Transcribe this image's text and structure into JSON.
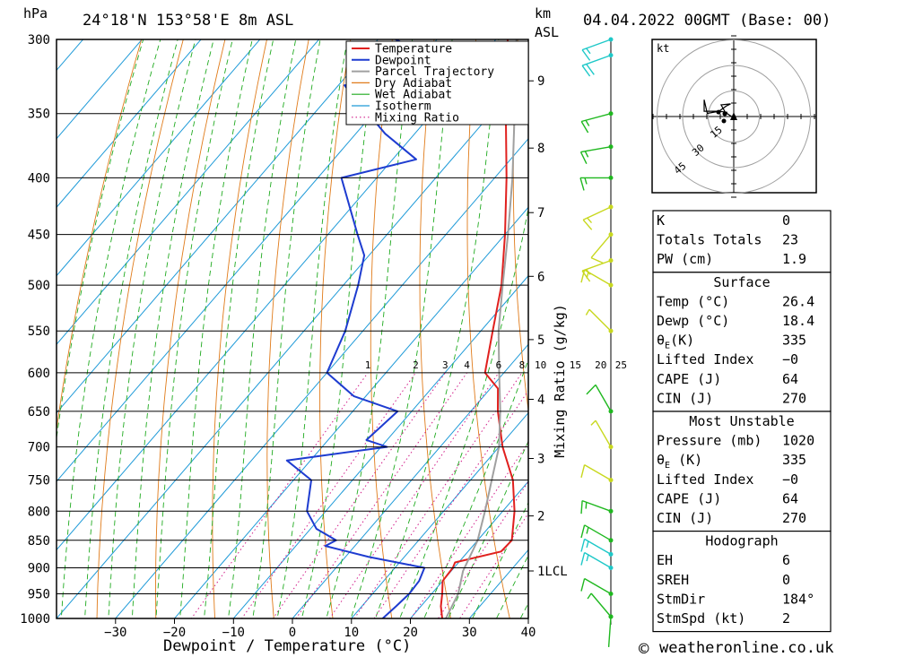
{
  "header": {
    "p_unit": "hPa",
    "location": "24°18'N 153°58'E 8m ASL",
    "km_unit": "km",
    "asl_label": "ASL",
    "date": "04.04.2022 00GMT (Base: 00)"
  },
  "legend": [
    "Temperature",
    "Dewpoint",
    "Parcel Trajectory",
    "Dry Adiabat",
    "Wet Adiabat",
    "Isotherm",
    "Mixing Ratio"
  ],
  "colors": {
    "temperature": "#e0201e",
    "dewpoint": "#1e3cd0",
    "parcel": "#a0a0a0",
    "dry_adiabat": "#e07b1a",
    "wet_adiabat": "#1faa1f",
    "isotherm": "#1e9ad8",
    "mixing_ratio": "#d21e8a",
    "wind_green": "#1fb81f",
    "wind_yellow": "#c8d81e",
    "wind_cyan": "#1ec8c8"
  },
  "chart_data": {
    "type": "line",
    "title": "24°18'N 153°58'E 8m ASL",
    "xlabel": "Dewpoint / Temperature (°C)",
    "ylabel": "hPa",
    "xlim": [
      -40,
      40
    ],
    "ylim": [
      1000,
      300
    ],
    "x_ticks": [
      "-30",
      "-20",
      "-10",
      "0",
      "10",
      "20",
      "30",
      "40"
    ],
    "pressure_levels": [
      "300",
      "350",
      "400",
      "450",
      "500",
      "550",
      "600",
      "650",
      "700",
      "750",
      "800",
      "850",
      "900",
      "950",
      "1000"
    ],
    "km_ticks": [
      {
        "label": "9",
        "p": 327
      },
      {
        "label": "8",
        "p": 376
      },
      {
        "label": "7",
        "p": 430
      },
      {
        "label": "6",
        "p": 491
      },
      {
        "label": "5",
        "p": 560
      },
      {
        "label": "4",
        "p": 634
      },
      {
        "label": "3",
        "p": 717
      },
      {
        "label": "2",
        "p": 808
      },
      {
        "label": "1LCL",
        "p": 906
      }
    ],
    "mixing_ratio_label": "Mixing Ratio (g/kg)",
    "mixing_ratio_values": [
      "1",
      "2",
      "3",
      "4",
      "6",
      "8",
      "10",
      "15",
      "20",
      "25"
    ],
    "series": [
      {
        "name": "Temperature",
        "points": [
          [
            1013,
            26.4
          ],
          [
            1000,
            25.4
          ],
          [
            975,
            23.4
          ],
          [
            950,
            21.8
          ],
          [
            925,
            20.0
          ],
          [
            900,
            19.8
          ],
          [
            890,
            19.4
          ],
          [
            870,
            25.6
          ],
          [
            850,
            25.8
          ],
          [
            800,
            22.0
          ],
          [
            750,
            17.2
          ],
          [
            700,
            10.6
          ],
          [
            650,
            4.6
          ],
          [
            620,
            1.3
          ],
          [
            600,
            -3.2
          ],
          [
            550,
            -8.0
          ],
          [
            500,
            -13.2
          ],
          [
            450,
            -20.0
          ],
          [
            400,
            -28.0
          ],
          [
            350,
            -37.5
          ],
          [
            300,
            -48.0
          ]
        ]
      },
      {
        "name": "Dewpoint",
        "points": [
          [
            1013,
            18.4
          ],
          [
            1000,
            15.3
          ],
          [
            975,
            15.8
          ],
          [
            950,
            16.2
          ],
          [
            925,
            16.0
          ],
          [
            900,
            15.0
          ],
          [
            880,
            4.0
          ],
          [
            860,
            -5.0
          ],
          [
            850,
            -4.0
          ],
          [
            830,
            -9.0
          ],
          [
            800,
            -13.2
          ],
          [
            750,
            -17.0
          ],
          [
            720,
            -24.0
          ],
          [
            700,
            -9.0
          ],
          [
            690,
            -13.5
          ],
          [
            650,
            -12.4
          ],
          [
            630,
            -22.0
          ],
          [
            600,
            -30.0
          ],
          [
            550,
            -33.0
          ],
          [
            500,
            -37.5
          ],
          [
            470,
            -40.8
          ],
          [
            450,
            -45.0
          ],
          [
            400,
            -56.0
          ],
          [
            385,
            -46.0
          ],
          [
            365,
            -55.0
          ],
          [
            330,
            -69.0
          ],
          [
            325,
            -50.0
          ],
          [
            310,
            -59.0
          ],
          [
            300,
            -67.0
          ]
        ]
      },
      {
        "name": "Parcel Trajectory",
        "points": [
          [
            1013,
            26.4
          ],
          [
            950,
            24.5
          ],
          [
            906,
            22.0
          ],
          [
            850,
            20.0
          ],
          [
            800,
            17.0
          ],
          [
            750,
            13.6
          ],
          [
            700,
            10.0
          ],
          [
            650,
            5.0
          ],
          [
            600,
            -0.8
          ],
          [
            550,
            -7.0
          ],
          [
            500,
            -13.0
          ],
          [
            450,
            -19.5
          ],
          [
            400,
            -27.0
          ],
          [
            350,
            -36.0
          ],
          [
            300,
            -46.5
          ]
        ]
      }
    ]
  },
  "wind_profile": [
    {
      "p": 1013,
      "dir": 184,
      "spd": 2,
      "color": "wind_green"
    },
    {
      "p": 1000,
      "dir": 320,
      "spd": 5,
      "color": "wind_green"
    },
    {
      "p": 950,
      "dir": 300,
      "spd": 10,
      "color": "wind_green"
    },
    {
      "p": 900,
      "dir": 300,
      "spd": 15,
      "color": "wind_cyan"
    },
    {
      "p": 875,
      "dir": 300,
      "spd": 15,
      "color": "wind_cyan"
    },
    {
      "p": 850,
      "dir": 300,
      "spd": 15,
      "color": "wind_green"
    },
    {
      "p": 800,
      "dir": 290,
      "spd": 15,
      "color": "wind_green"
    },
    {
      "p": 750,
      "dir": 300,
      "spd": 10,
      "color": "wind_yellow"
    },
    {
      "p": 700,
      "dir": 330,
      "spd": 5,
      "color": "wind_yellow"
    },
    {
      "p": 650,
      "dir": 330,
      "spd": 10,
      "color": "wind_green"
    },
    {
      "p": 550,
      "dir": 315,
      "spd": 5,
      "color": "wind_yellow"
    },
    {
      "p": 500,
      "dir": 300,
      "spd": 15,
      "color": "wind_yellow"
    },
    {
      "p": 475,
      "dir": 250,
      "spd": 15,
      "color": "wind_yellow"
    },
    {
      "p": 450,
      "dir": 220,
      "spd": 10,
      "color": "wind_yellow"
    },
    {
      "p": 425,
      "dir": 245,
      "spd": 15,
      "color": "wind_yellow"
    },
    {
      "p": 400,
      "dir": 270,
      "spd": 15,
      "color": "wind_green"
    },
    {
      "p": 375,
      "dir": 260,
      "spd": 15,
      "color": "wind_green"
    },
    {
      "p": 350,
      "dir": 255,
      "spd": 15,
      "color": "wind_green"
    },
    {
      "p": 310,
      "dir": 250,
      "spd": 20,
      "color": "wind_cyan"
    },
    {
      "p": 300,
      "dir": 250,
      "spd": 15,
      "color": "wind_cyan"
    }
  ],
  "hodograph": {
    "unit_label": "kt",
    "ring_labels": [
      "15",
      "30",
      "45"
    ],
    "points": [
      [
        -6,
        4
      ],
      [
        -14,
        5
      ],
      [
        -25,
        3
      ],
      [
        -28,
        16
      ],
      [
        -28,
        5
      ],
      [
        -14,
        5
      ],
      [
        -7,
        10
      ],
      [
        -3,
        12
      ],
      [
        -12,
        11
      ],
      [
        -8,
        4
      ],
      [
        -2,
        0
      ],
      [
        0,
        -2
      ]
    ]
  },
  "indices": {
    "top": [
      {
        "label": "K",
        "value": "0"
      },
      {
        "label": "Totals Totals",
        "value": "23"
      },
      {
        "label": "PW (cm)",
        "value": "1.9"
      }
    ],
    "surface_title": "Surface",
    "surface": [
      {
        "label": "Temp (°C)",
        "value": "26.4"
      },
      {
        "label": "Dewp (°C)",
        "value": "18.4"
      },
      {
        "label": "θE(K)",
        "value": "335"
      },
      {
        "label": "Lifted Index",
        "value": "-0"
      },
      {
        "label": "CAPE (J)",
        "value": "64"
      },
      {
        "label": "CIN (J)",
        "value": "270"
      }
    ],
    "mu_title": "Most Unstable",
    "mu": [
      {
        "label": "Pressure (mb)",
        "value": "1020"
      },
      {
        "label": "θE (K)",
        "value": "335"
      },
      {
        "label": "Lifted Index",
        "value": "-0"
      },
      {
        "label": "CAPE (J)",
        "value": "64"
      },
      {
        "label": "CIN (J)",
        "value": "270"
      }
    ],
    "hodo_title": "Hodograph",
    "hodo": [
      {
        "label": "EH",
        "value": "6"
      },
      {
        "label": "SREH",
        "value": "0"
      },
      {
        "label": "StmDir",
        "value": "184°"
      },
      {
        "label": "StmSpd (kt)",
        "value": "2"
      }
    ]
  },
  "footer": {
    "copyright": "©",
    "site": "weatheronline.co.uk"
  }
}
